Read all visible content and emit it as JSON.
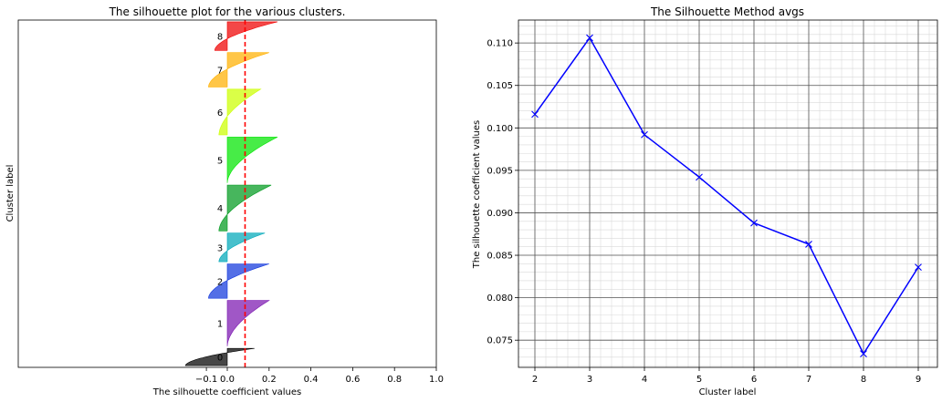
{
  "chart_data": [
    {
      "type": "area",
      "title": "The silhouette plot for the various clusters.",
      "xlabel": "The silhouette coefficient values",
      "ylabel": "Cluster label",
      "xlim": [
        -1.0,
        1.0
      ],
      "xticks": [
        -0.1,
        0.0,
        0.2,
        0.4,
        0.6,
        0.8,
        1.0
      ],
      "xtick_labels": [
        "−0.1",
        "0.0",
        "0.2",
        "0.4",
        "0.6",
        "0.8",
        "1.0"
      ],
      "average_line": {
        "value": 0.085,
        "color": "#ff0000",
        "style": "dashed"
      },
      "clusters": [
        {
          "label": "0",
          "color": "#000000",
          "min": -0.2,
          "max": 0.13,
          "size": 2.4
        },
        {
          "label": "1",
          "color": "#7b16b0",
          "min": 0.0,
          "max": 0.2,
          "size": 6.4
        },
        {
          "label": "2",
          "color": "#1237dc",
          "min": -0.09,
          "max": 0.2,
          "size": 4.8
        },
        {
          "label": "3",
          "color": "#00a8b9",
          "min": -0.04,
          "max": 0.18,
          "size": 4.0
        },
        {
          "label": "4",
          "color": "#009a1f",
          "min": -0.04,
          "max": 0.21,
          "size": 6.4
        },
        {
          "label": "5",
          "color": "#00e400",
          "min": 0.0,
          "max": 0.24,
          "size": 6.4
        },
        {
          "label": "6",
          "color": "#ccff00",
          "min": -0.04,
          "max": 0.16,
          "size": 6.4
        },
        {
          "label": "7",
          "color": "#ffb000",
          "min": -0.09,
          "max": 0.2,
          "size": 4.8
        },
        {
          "label": "8",
          "color": "#ee0000",
          "min": -0.06,
          "max": 0.24,
          "size": 4.0
        }
      ]
    },
    {
      "type": "line",
      "title": "The Silhouette Method avgs",
      "xlabel": "Cluster label",
      "ylabel": "The silhouette coefficient values",
      "x": [
        2,
        3,
        4,
        5,
        6,
        7,
        8,
        9
      ],
      "series": [
        {
          "values": [
            0.1016,
            0.1106,
            0.0992,
            0.0942,
            0.0888,
            0.0863,
            0.0734,
            0.0836
          ],
          "color": "#0000ff",
          "marker": "x"
        }
      ],
      "xlim": [
        1.7,
        9.35
      ],
      "ylim": [
        0.0718,
        0.1127
      ],
      "xticks": [
        2,
        3,
        4,
        5,
        6,
        7,
        8,
        9
      ],
      "xtick_labels": [
        "2",
        "3",
        "4",
        "5",
        "6",
        "7",
        "8",
        "9"
      ],
      "yticks": [
        0.075,
        0.08,
        0.085,
        0.09,
        0.095,
        0.1,
        0.105,
        0.11
      ],
      "ytick_labels": [
        "0.075",
        "0.080",
        "0.085",
        "0.090",
        "0.095",
        "0.100",
        "0.105",
        "0.110"
      ],
      "grid": "major and minor"
    }
  ]
}
